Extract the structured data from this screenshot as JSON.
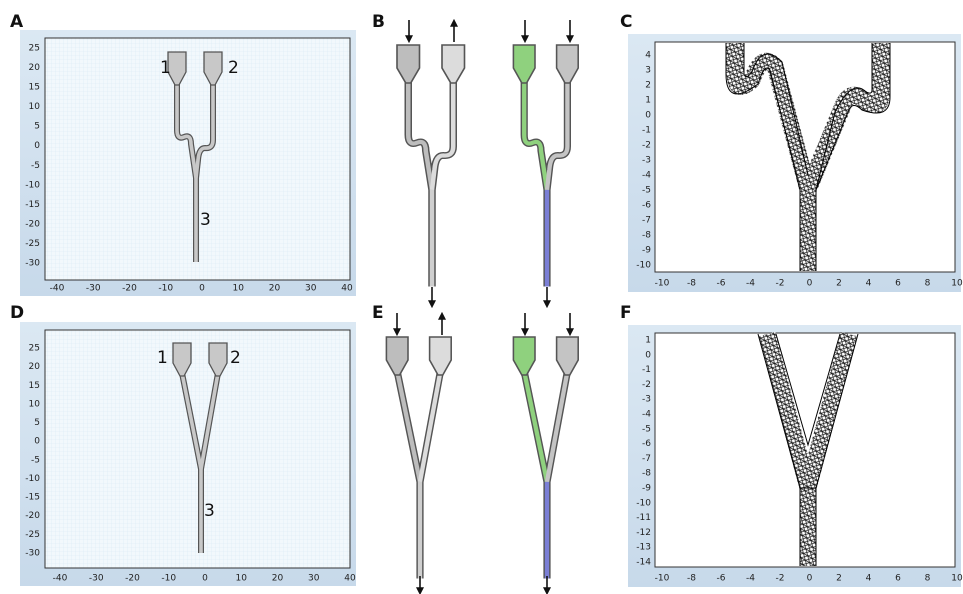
{
  "panels": [
    {
      "label": "A",
      "xticks": [
        "-40",
        "-30",
        "-20",
        "-10",
        "0",
        "10",
        "20",
        "30",
        "40"
      ],
      "yticks": [
        "25",
        "20",
        "15",
        "10",
        "5",
        "0",
        "-5",
        "-10",
        "-15",
        "-20",
        "-25",
        "-30"
      ],
      "ports": [
        "1",
        "2",
        "3"
      ]
    },
    {
      "label": "B"
    },
    {
      "label": "C",
      "xticks": [
        "-10",
        "-8",
        "-6",
        "-4",
        "-2",
        "0",
        "2",
        "4",
        "6",
        "8",
        "10"
      ],
      "yticks": [
        "4",
        "3",
        "2",
        "1",
        "0",
        "-1",
        "-2",
        "-3",
        "-4",
        "-5",
        "-6",
        "-7",
        "-8",
        "-9",
        "-10"
      ]
    },
    {
      "label": "D",
      "xticks": [
        "-40",
        "-30",
        "-20",
        "-10",
        "0",
        "10",
        "20",
        "30",
        "40"
      ],
      "yticks": [
        "25",
        "20",
        "15",
        "10",
        "5",
        "0",
        "-5",
        "-10",
        "-15",
        "-20",
        "-25",
        "-30"
      ],
      "ports": [
        "1",
        "2",
        "3"
      ]
    },
    {
      "label": "E"
    },
    {
      "label": "F",
      "xticks": [
        "-10",
        "-8",
        "-6",
        "-4",
        "-2",
        "0",
        "2",
        "4",
        "6",
        "8",
        "10"
      ],
      "yticks": [
        "1",
        "0",
        "-1",
        "-2",
        "-3",
        "-4",
        "-5",
        "-6",
        "-7",
        "-8",
        "-9",
        "-10",
        "-11",
        "-12",
        "-13",
        "-14"
      ]
    }
  ]
}
